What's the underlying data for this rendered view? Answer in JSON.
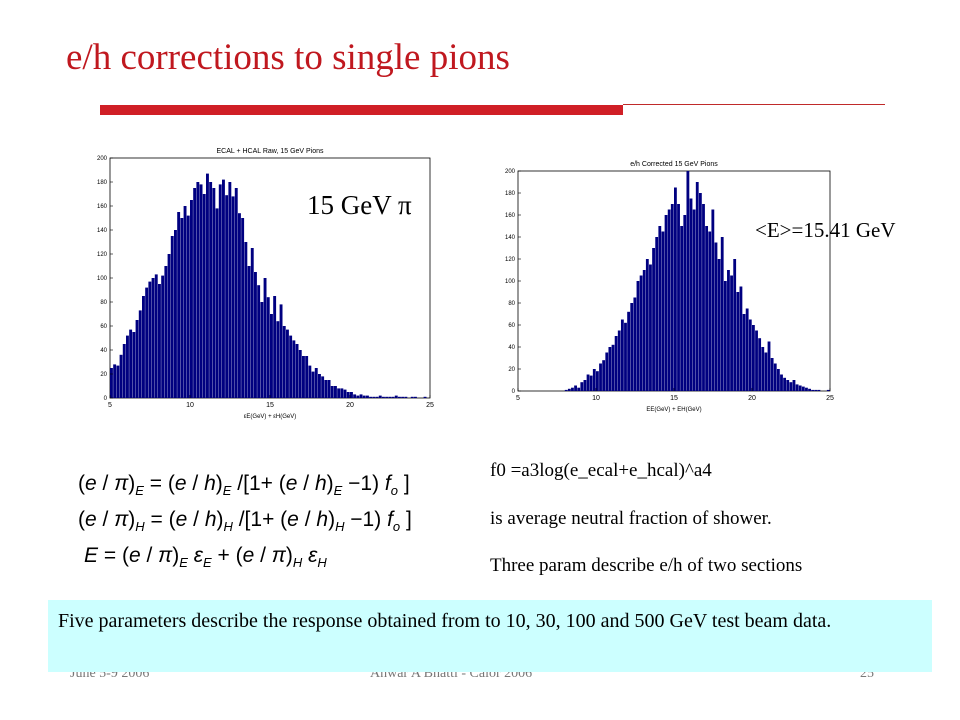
{
  "slide": {
    "title": "e/h corrections to single pions",
    "pion_label": "15 GeV π",
    "mean_label": "<E>=15.41 GeV",
    "notes": [
      "f0 =a3log(e_ecal+e_hcal)^a4",
      "is average neutral fraction of shower.",
      "Three param describe e/h of two sections"
    ],
    "callout": "Five parameters describe the response obtained from to 10, 30, 100 and 500 GeV test beam data.",
    "footer": {
      "date": "June 5-9 2006",
      "author": "Anwar A Bhatti - Calor 2006",
      "page": "25"
    }
  },
  "colors": {
    "title": "#c0181f",
    "rule": "#d01f26",
    "bars": "#000080",
    "callout_bg": "#ccffff"
  },
  "chart_data": [
    {
      "type": "bar",
      "title": "ECAL + HCAL Raw, 15 GeV Pions",
      "xlabel": "εE(GeV) + εH(GeV)",
      "ylabel": "",
      "xlim": [
        5,
        25
      ],
      "ylim": [
        0,
        200
      ],
      "xticks": [
        5,
        10,
        15,
        20,
        25
      ],
      "yticks": [
        0,
        20,
        40,
        60,
        80,
        100,
        120,
        140,
        160,
        180,
        200
      ],
      "bin_start": 5.0,
      "bin_width": 0.2,
      "values": [
        25,
        28,
        27,
        36,
        45,
        52,
        57,
        55,
        65,
        73,
        85,
        92,
        97,
        100,
        103,
        95,
        102,
        110,
        120,
        135,
        140,
        155,
        150,
        160,
        152,
        165,
        175,
        180,
        178,
        170,
        187,
        180,
        175,
        158,
        178,
        182,
        169,
        180,
        168,
        175,
        154,
        150,
        130,
        110,
        125,
        105,
        94,
        80,
        100,
        84,
        70,
        85,
        64,
        78,
        60,
        57,
        52,
        48,
        45,
        40,
        35,
        35,
        27,
        22,
        25,
        20,
        18,
        15,
        15,
        10,
        10,
        8,
        8,
        7,
        5,
        5,
        3,
        2,
        3,
        2,
        2,
        1,
        1,
        1,
        2,
        1,
        1,
        1,
        1,
        2,
        1,
        1,
        1,
        0,
        1,
        1,
        0,
        0,
        1,
        0
      ]
    },
    {
      "type": "bar",
      "title": "e/h Corrected 15 GeV Pions",
      "xlabel": "EE(GeV) + EH(GeV)",
      "ylabel": "",
      "xlim": [
        5,
        25
      ],
      "ylim": [
        0,
        200
      ],
      "xticks": [
        5,
        10,
        15,
        20,
        25
      ],
      "yticks": [
        0,
        20,
        40,
        60,
        80,
        100,
        120,
        140,
        160,
        180,
        200
      ],
      "bin_start": 5.0,
      "bin_width": 0.2,
      "values": [
        0,
        0,
        0,
        0,
        0,
        0,
        0,
        0,
        0,
        0,
        0,
        0,
        0,
        0,
        0,
        1,
        2,
        3,
        5,
        3,
        8,
        10,
        15,
        14,
        20,
        18,
        25,
        28,
        35,
        40,
        42,
        50,
        55,
        65,
        62,
        72,
        80,
        85,
        100,
        105,
        110,
        120,
        115,
        130,
        140,
        150,
        145,
        160,
        165,
        170,
        185,
        170,
        150,
        160,
        200,
        175,
        165,
        190,
        180,
        170,
        150,
        145,
        165,
        135,
        120,
        140,
        100,
        110,
        105,
        120,
        90,
        95,
        70,
        75,
        65,
        60,
        55,
        48,
        40,
        35,
        45,
        30,
        25,
        20,
        15,
        12,
        10,
        8,
        10,
        6,
        5,
        4,
        3,
        2,
        1,
        1,
        1,
        0,
        0,
        1
      ]
    }
  ]
}
